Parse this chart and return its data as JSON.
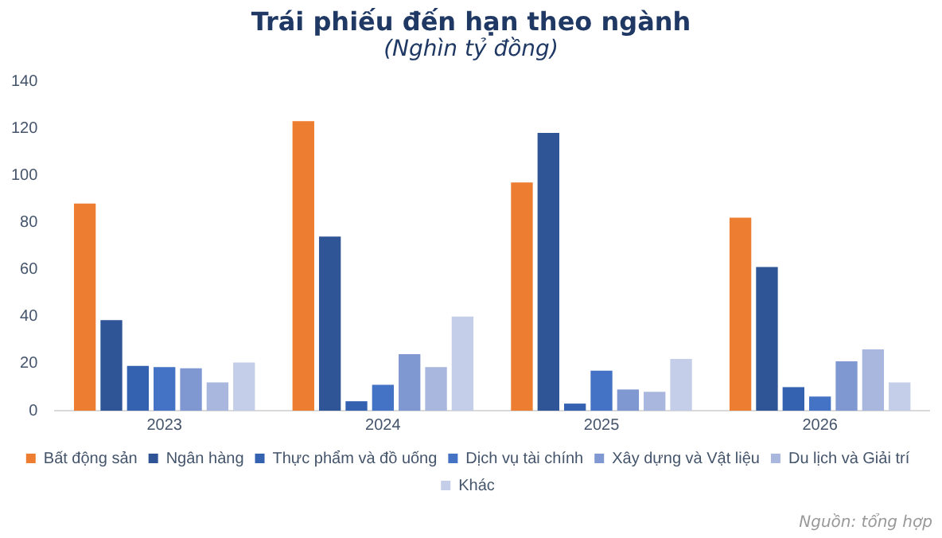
{
  "chart_data": {
    "type": "bar",
    "title": "Trái phiếu đến hạn theo ngành",
    "subtitle": "(Nghìn tỷ đồng)",
    "categories": [
      "2023",
      "2024",
      "2025",
      "2026"
    ],
    "series": [
      {
        "name": "Bất động sản",
        "color": "#ed7d31",
        "values": [
          88,
          123,
          97,
          82
        ]
      },
      {
        "name": "Ngân hàng",
        "color": "#2f5597",
        "values": [
          38.5,
          74,
          118,
          61
        ]
      },
      {
        "name": "Thực phẩm và đồ uống",
        "color": "#3461b0",
        "values": [
          19,
          4,
          3,
          10
        ]
      },
      {
        "name": "Dịch vụ tài chính",
        "color": "#4472c4",
        "values": [
          18.5,
          11,
          17,
          6
        ]
      },
      {
        "name": "Xây dựng và Vật liệu",
        "color": "#8098d2",
        "values": [
          18,
          24,
          9,
          21
        ]
      },
      {
        "name": "Du lịch và Giải trí",
        "color": "#a9b6de",
        "values": [
          12,
          18.5,
          8,
          26
        ]
      },
      {
        "name": "Khác",
        "color": "#c5cee8",
        "values": [
          20.5,
          40,
          22,
          12
        ]
      }
    ],
    "ylim": [
      0,
      140
    ],
    "yticks": [
      0,
      20,
      40,
      60,
      80,
      100,
      120,
      140
    ],
    "grid": false,
    "legend": "bottom",
    "annotations": [
      "Nguồn: tổng hợp"
    ]
  }
}
